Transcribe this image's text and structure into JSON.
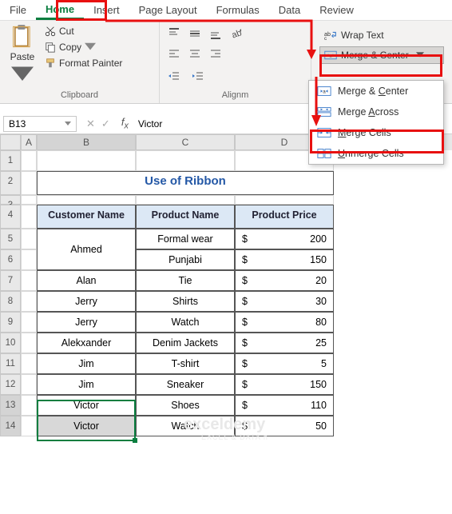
{
  "menubar": {
    "items": [
      "File",
      "Home",
      "Insert",
      "Page Layout",
      "Formulas",
      "Data",
      "Review"
    ],
    "active_index": 1
  },
  "ribbon": {
    "clipboard": {
      "paste": "Paste",
      "cut": "Cut",
      "copy": "Copy",
      "format_painter": "Format Painter",
      "group_label": "Clipboard"
    },
    "alignment": {
      "group_label": "Alignm",
      "wrap_text": "Wrap Text",
      "merge_center": "Merge & Center"
    }
  },
  "merge_dropdown": {
    "items": [
      {
        "label_pre": "Merge & ",
        "label_u": "C",
        "label_post": "enter"
      },
      {
        "label_pre": "Merge ",
        "label_u": "A",
        "label_post": "cross"
      },
      {
        "label_pre": "",
        "label_u": "M",
        "label_post": "erge Cells"
      },
      {
        "label_pre": "",
        "label_u": "U",
        "label_post": "nmerge Cells"
      }
    ]
  },
  "namebox": "B13",
  "formula_value": "Victor",
  "sheet": {
    "title": "Use of Ribbon",
    "headers": [
      "Customer Name",
      "Product Name",
      "Product Price"
    ],
    "rows": [
      {
        "customer": "Ahmed",
        "product": "Formal wear",
        "currency": "$",
        "price": "200",
        "merged_with_next": true
      },
      {
        "customer": "",
        "product": "Punjabi",
        "currency": "$",
        "price": "150"
      },
      {
        "customer": "Alan",
        "product": "Tie",
        "currency": "$",
        "price": "20"
      },
      {
        "customer": "Jerry",
        "product": "Shirts",
        "currency": "$",
        "price": "30"
      },
      {
        "customer": "Jerry",
        "product": "Watch",
        "currency": "$",
        "price": "80"
      },
      {
        "customer": "Alekxander",
        "product": "Denim Jackets",
        "currency": "$",
        "price": "25"
      },
      {
        "customer": "Jim",
        "product": "T-shirt",
        "currency": "$",
        "price": "5"
      },
      {
        "customer": "Jim",
        "product": "Sneaker",
        "currency": "$",
        "price": "150"
      },
      {
        "customer": "Victor",
        "product": "Shoes",
        "currency": "$",
        "price": "110"
      },
      {
        "customer": "Victor",
        "product": "Watch",
        "currency": "$",
        "price": "50"
      }
    ]
  },
  "colors": {
    "accent_green": "#0a7e3f",
    "header_fill": "#dce8f5",
    "title_color": "#2458a6",
    "highlight_red": "#e81010",
    "ribbon_bg": "#f3f2f1",
    "selection_gray": "#d8d8d8"
  },
  "watermark": {
    "main": "exceldemy",
    "sub": "EXCEL & DATA h"
  }
}
